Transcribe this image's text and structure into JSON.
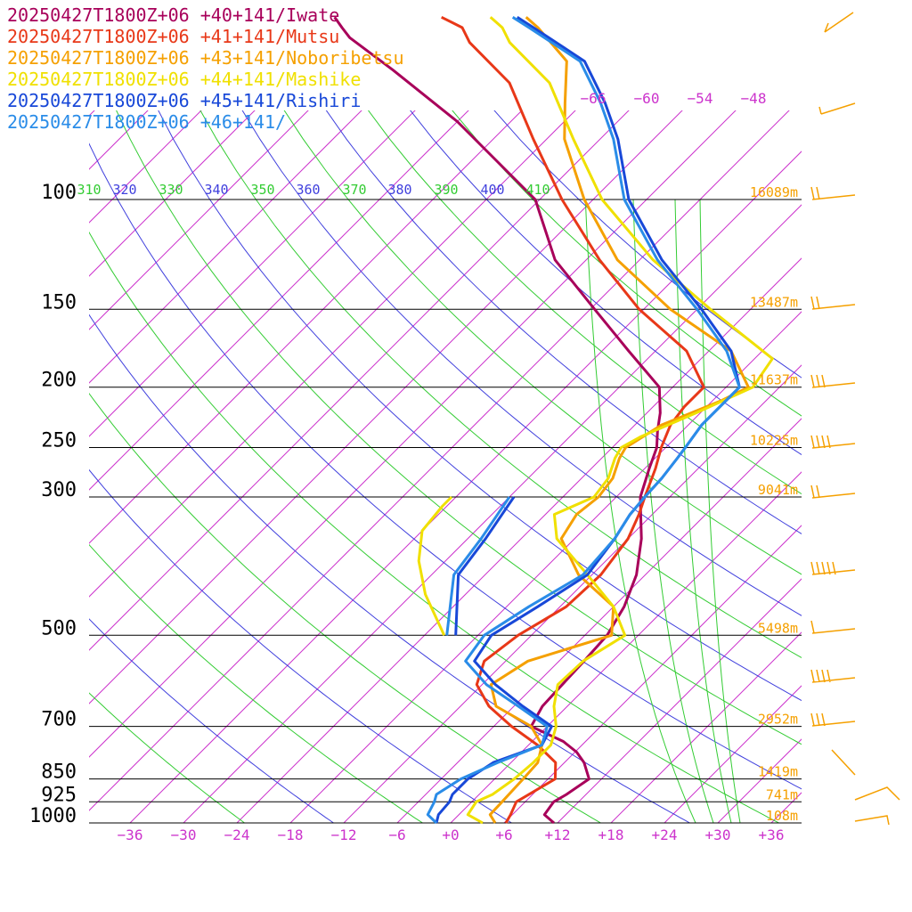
{
  "chart_data": {
    "type": "line",
    "title": "",
    "legend": [
      {
        "label": "20250427T1800Z+06 +40+141/Iwate",
        "color": "#a8005a"
      },
      {
        "label": "20250427T1800Z+06 +41+141/Mutsu",
        "color": "#e83818"
      },
      {
        "label": "20250427T1800Z+06 +43+141/Noboribetsu",
        "color": "#f5a000"
      },
      {
        "label": "20250427T1800Z+06 +44+141/Mashike",
        "color": "#f0e000"
      },
      {
        "label": "20250427T1800Z+06 +45+141/Rishiri",
        "color": "#1848d8"
      },
      {
        "label": "20250427T1800Z+06 +46+141/",
        "color": "#2a8ce8"
      }
    ],
    "legend_position": "top-left",
    "x_axis": {
      "xlim": [
        -40,
        40
      ],
      "ticks": [
        -36,
        -30,
        -24,
        -18,
        -12,
        -6,
        0,
        6,
        12,
        18,
        24,
        30,
        36
      ],
      "tick_labels": [
        "−36",
        "−30",
        "−24",
        "−18",
        "−12",
        "−6",
        "+0",
        "+6",
        "+12",
        "+18",
        "+24",
        "+30",
        "+36"
      ]
    },
    "y_axis": {
      "scale": "log-pressure",
      "levels": [
        1000,
        925,
        850,
        700,
        500,
        300,
        250,
        200,
        150,
        100
      ],
      "tick_labels": [
        "1000",
        "925",
        "850",
        "700",
        "500",
        "300",
        "250",
        "200",
        "150",
        "100"
      ]
    },
    "heights": [
      {
        "p": 1000,
        "label": "108m"
      },
      {
        "p": 925,
        "label": "741m"
      },
      {
        "p": 850,
        "label": "1419m"
      },
      {
        "p": 700,
        "label": "2952m"
      },
      {
        "p": 500,
        "label": "5498m"
      },
      {
        "p": 300,
        "label": "9041m"
      },
      {
        "p": 250,
        "label": "10225m"
      },
      {
        "p": 200,
        "label": "11637m"
      },
      {
        "p": 150,
        "label": "13487m"
      },
      {
        "p": 100,
        "label": "16089m"
      }
    ],
    "isotherm_labels": [
      "−66",
      "−60",
      "−54",
      "−48"
    ],
    "theta_labels": [
      "310",
      "320",
      "330",
      "340",
      "350",
      "360",
      "370",
      "380",
      "390",
      "400",
      "410"
    ],
    "series": [
      {
        "name": "20250427T1800Z+06 +40+141/Iwate",
        "color": "#a8005a",
        "temperature": [
          [
            1000,
            11.6
          ],
          [
            970,
            9.6
          ],
          [
            925,
            9.2
          ],
          [
            900,
            9.8
          ],
          [
            850,
            10.6
          ],
          [
            800,
            8.2
          ],
          [
            770,
            6.2
          ],
          [
            740,
            3.5
          ],
          [
            700,
            -1.8
          ],
          [
            650,
            -2.8
          ],
          [
            600,
            -3.0
          ],
          [
            550,
            -3.2
          ],
          [
            500,
            -3.5
          ],
          [
            450,
            -4.8
          ],
          [
            400,
            -7.0
          ],
          [
            350,
            -10.5
          ],
          [
            320,
            -13.3
          ],
          [
            300,
            -15.3
          ],
          [
            270,
            -17.5
          ],
          [
            250,
            -19.0
          ],
          [
            235,
            -20.8
          ],
          [
            220,
            -22.5
          ],
          [
            200,
            -25.5
          ],
          [
            175,
            -33.0
          ],
          [
            150,
            -41.5
          ],
          [
            125,
            -51.5
          ],
          [
            100,
            -60.5
          ],
          [
            75,
            -78.0
          ],
          [
            62,
            -91.0
          ],
          [
            55,
            -99.5
          ],
          [
            53,
            -101.5
          ],
          [
            51,
            -103.5
          ]
        ]
      },
      {
        "name": "20250427T1800Z+06 +41+141/Mutsu",
        "color": "#e83818",
        "temperature": [
          [
            1000,
            6.2
          ],
          [
            970,
            5.8
          ],
          [
            925,
            5.0
          ],
          [
            850,
            6.8
          ],
          [
            800,
            5.0
          ],
          [
            750,
            1.0
          ],
          [
            700,
            -4.0
          ],
          [
            650,
            -8.8
          ],
          [
            600,
            -12.6
          ],
          [
            550,
            -14.4
          ],
          [
            500,
            -13.5
          ],
          [
            450,
            -11.3
          ],
          [
            400,
            -11.0
          ],
          [
            350,
            -12.0
          ],
          [
            320,
            -13.5
          ],
          [
            300,
            -14.8
          ],
          [
            270,
            -16.8
          ],
          [
            250,
            -18.5
          ],
          [
            230,
            -20.0
          ],
          [
            215,
            -20.5
          ],
          [
            200,
            -20.5
          ],
          [
            175,
            -26.5
          ],
          [
            150,
            -36.5
          ],
          [
            125,
            -46.5
          ],
          [
            100,
            -57.5
          ],
          [
            80,
            -67.5
          ],
          [
            65,
            -76.5
          ],
          [
            56,
            -85.5
          ],
          [
            53,
            -88.0
          ],
          [
            51,
            -91.5
          ]
        ]
      },
      {
        "name": "20250427T1800Z+06 +43+141/Noboribetsu",
        "color": "#f5a000",
        "temperature": [
          [
            1000,
            5.0
          ],
          [
            970,
            3.5
          ],
          [
            925,
            3.4
          ],
          [
            850,
            3.2
          ],
          [
            800,
            3.0
          ],
          [
            750,
            1.5
          ],
          [
            700,
            -1.8
          ],
          [
            650,
            -8.0
          ],
          [
            600,
            -11.0
          ],
          [
            550,
            -9.5
          ],
          [
            500,
            -3.0
          ],
          [
            450,
            -6.0
          ],
          [
            400,
            -13.5
          ],
          [
            350,
            -19.5
          ],
          [
            320,
            -20.5
          ],
          [
            300,
            -20.0
          ],
          [
            280,
            -20.5
          ],
          [
            260,
            -22.0
          ],
          [
            250,
            -22.5
          ],
          [
            230,
            -21.0
          ],
          [
            210,
            -17.0
          ],
          [
            200,
            -15.5
          ],
          [
            175,
            -21.5
          ],
          [
            150,
            -33.0
          ],
          [
            125,
            -44.5
          ],
          [
            100,
            -55.0
          ],
          [
            80,
            -64.0
          ],
          [
            70,
            -68.0
          ],
          [
            60,
            -72.5
          ],
          [
            53,
            -79.5
          ],
          [
            51,
            -82.0
          ]
        ]
      },
      {
        "name": "20250427T1800Z+06 +44+141/Mashike",
        "color": "#f0e000",
        "temperature": [
          [
            1000,
            3.6
          ],
          [
            970,
            1.0
          ],
          [
            925,
            0.5
          ],
          [
            900,
            1.5
          ],
          [
            850,
            2.2
          ],
          [
            800,
            2.5
          ],
          [
            750,
            2.5
          ],
          [
            700,
            1.0
          ],
          [
            650,
            -1.5
          ],
          [
            600,
            -3.5
          ],
          [
            550,
            -3.3
          ],
          [
            500,
            -1.5
          ],
          [
            450,
            -6.0
          ],
          [
            400,
            -12.5
          ],
          [
            350,
            -20.0
          ],
          [
            320,
            -23.0
          ],
          [
            300,
            -20.5
          ],
          [
            280,
            -21.0
          ],
          [
            260,
            -22.5
          ],
          [
            250,
            -23.0
          ],
          [
            240,
            -22.0
          ],
          [
            220,
            -18.5
          ],
          [
            200,
            -15.0
          ],
          [
            180,
            -16.0
          ],
          [
            150,
            -28.5
          ],
          [
            125,
            -40.5
          ],
          [
            100,
            -53.0
          ],
          [
            80,
            -63.0
          ],
          [
            65,
            -72.0
          ],
          [
            56,
            -81.0
          ],
          [
            53,
            -83.5
          ],
          [
            51,
            -86.0
          ]
        ]
      },
      {
        "name": "20250427T1800Z+06 +45+141/Rishiri",
        "color": "#1848d8",
        "temperature": [
          [
            1000,
            -1.6
          ],
          [
            970,
            -2.3
          ],
          [
            925,
            -2.5
          ],
          [
            900,
            -3.0
          ],
          [
            850,
            -3.0
          ],
          [
            800,
            -2.0
          ],
          [
            750,
            1.5
          ],
          [
            700,
            0.5
          ],
          [
            650,
            -5.0
          ],
          [
            600,
            -10.5
          ],
          [
            550,
            -15.5
          ],
          [
            500,
            -16.5
          ],
          [
            450,
            -14.5
          ],
          [
            400,
            -12.5
          ],
          [
            350,
            -13.5
          ],
          [
            320,
            -14.5
          ],
          [
            300,
            -14.8
          ],
          [
            280,
            -15.0
          ],
          [
            260,
            -15.5
          ],
          [
            250,
            -15.8
          ],
          [
            230,
            -16.5
          ],
          [
            200,
            -16.5
          ],
          [
            175,
            -21.5
          ],
          [
            150,
            -29.5
          ],
          [
            125,
            -39.5
          ],
          [
            100,
            -50.0
          ],
          [
            80,
            -58.0
          ],
          [
            70,
            -63.5
          ],
          [
            60,
            -70.5
          ],
          [
            53,
            -80.0
          ],
          [
            51,
            -83.0
          ]
        ]
      },
      {
        "name": "20250427T1800Z+06 +46+141/",
        "color": "#2a8ce8",
        "temperature": [
          [
            1000,
            -1.6
          ],
          [
            970,
            -3.5
          ],
          [
            925,
            -4.2
          ],
          [
            900,
            -4.8
          ],
          [
            850,
            -3.8
          ],
          [
            800,
            -1.5
          ],
          [
            750,
            1.5
          ],
          [
            700,
            0.0
          ],
          [
            650,
            -5.5
          ],
          [
            600,
            -11.5
          ],
          [
            550,
            -16.5
          ],
          [
            500,
            -17.3
          ],
          [
            450,
            -15.5
          ],
          [
            400,
            -13.0
          ],
          [
            350,
            -13.5
          ],
          [
            320,
            -14.5
          ],
          [
            300,
            -14.8
          ],
          [
            280,
            -15.0
          ],
          [
            260,
            -15.5
          ],
          [
            250,
            -15.8
          ],
          [
            230,
            -16.5
          ],
          [
            200,
            -16.5
          ],
          [
            175,
            -22.0
          ],
          [
            150,
            -30.0
          ],
          [
            125,
            -40.0
          ],
          [
            100,
            -50.5
          ],
          [
            80,
            -58.5
          ],
          [
            70,
            -64.0
          ],
          [
            60,
            -71.0
          ],
          [
            53,
            -80.5
          ],
          [
            51,
            -83.5
          ]
        ]
      }
    ],
    "dewpoint_partial": [
      {
        "color": "#f0e000",
        "points": [
          [
            500,
            -21.8
          ],
          [
            430,
            -28.5
          ],
          [
            380,
            -33.0
          ],
          [
            340,
            -36.0
          ],
          [
            310,
            -36.5
          ],
          [
            300,
            -36.5
          ]
        ]
      },
      {
        "color": "#2a8ce8",
        "points": [
          [
            500,
            -21.5
          ],
          [
            400,
            -27.5
          ],
          [
            350,
            -28.5
          ],
          [
            300,
            -30.0
          ]
        ]
      },
      {
        "color": "#1848d8",
        "points": [
          [
            500,
            -20.5
          ],
          [
            400,
            -27.0
          ],
          [
            350,
            -28.0
          ],
          [
            300,
            -29.5
          ]
        ]
      }
    ]
  }
}
